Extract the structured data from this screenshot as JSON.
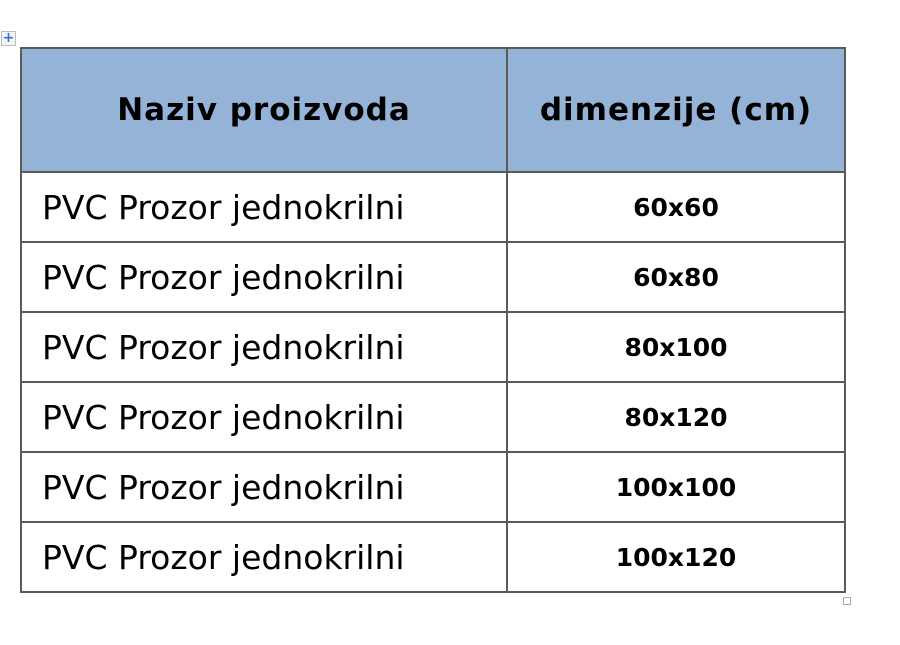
{
  "table": {
    "headers": [
      "Naziv proizvoda",
      "dimenzije (cm)"
    ],
    "header_color": "#95b3d7",
    "rows": [
      {
        "name": "PVC Prozor jednokrilni",
        "dim": "60x60"
      },
      {
        "name": "PVC Prozor jednokrilni",
        "dim": "60x80"
      },
      {
        "name": "PVC Prozor jednokrilni",
        "dim": "80x100"
      },
      {
        "name": "PVC Prozor jednokrilni",
        "dim": "80x120"
      },
      {
        "name": "PVC Prozor jednokrilni",
        "dim": "100x100"
      },
      {
        "name": "PVC Prozor jednokrilni",
        "dim": "100x120"
      }
    ]
  },
  "icons": {
    "move": "table-move-handle-icon",
    "resize": "table-resize-handle-icon"
  }
}
